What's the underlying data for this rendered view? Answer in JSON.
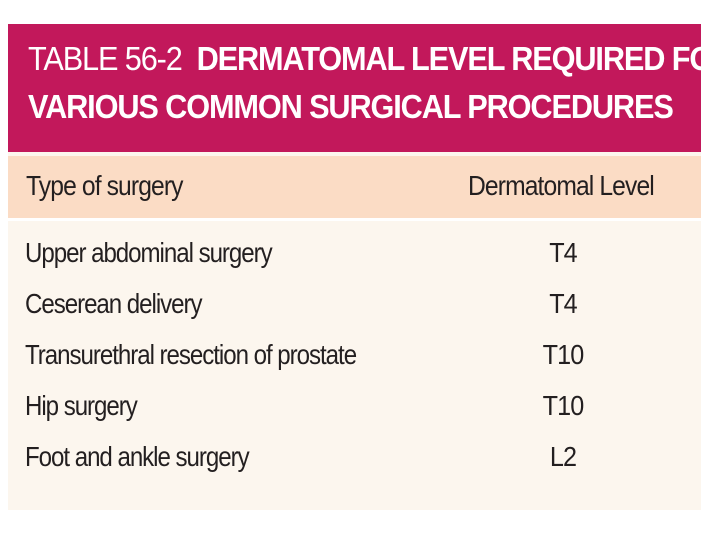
{
  "table": {
    "title_label": "TABLE 56-2",
    "title_line1": "DERMATOMAL LEVEL REQUIRED FOR",
    "title_line2": "VARIOUS COMMON SURGICAL PROCEDURES",
    "columns": [
      "Type of surgery",
      "Dermatomal Level"
    ],
    "rows": [
      {
        "procedure": "Upper abdominal surgery",
        "level": "T4"
      },
      {
        "procedure": "Ceserean delivery",
        "level": "T4"
      },
      {
        "procedure": "Transurethral resection of prostate",
        "level": "T10"
      },
      {
        "procedure": "Hip surgery",
        "level": "T10"
      },
      {
        "procedure": "Foot and ankle surgery",
        "level": "L2"
      }
    ],
    "colors": {
      "title_bg": "#c2185b",
      "header_bg": "#fbdcc5",
      "body_bg": "#fcf6ee"
    }
  }
}
